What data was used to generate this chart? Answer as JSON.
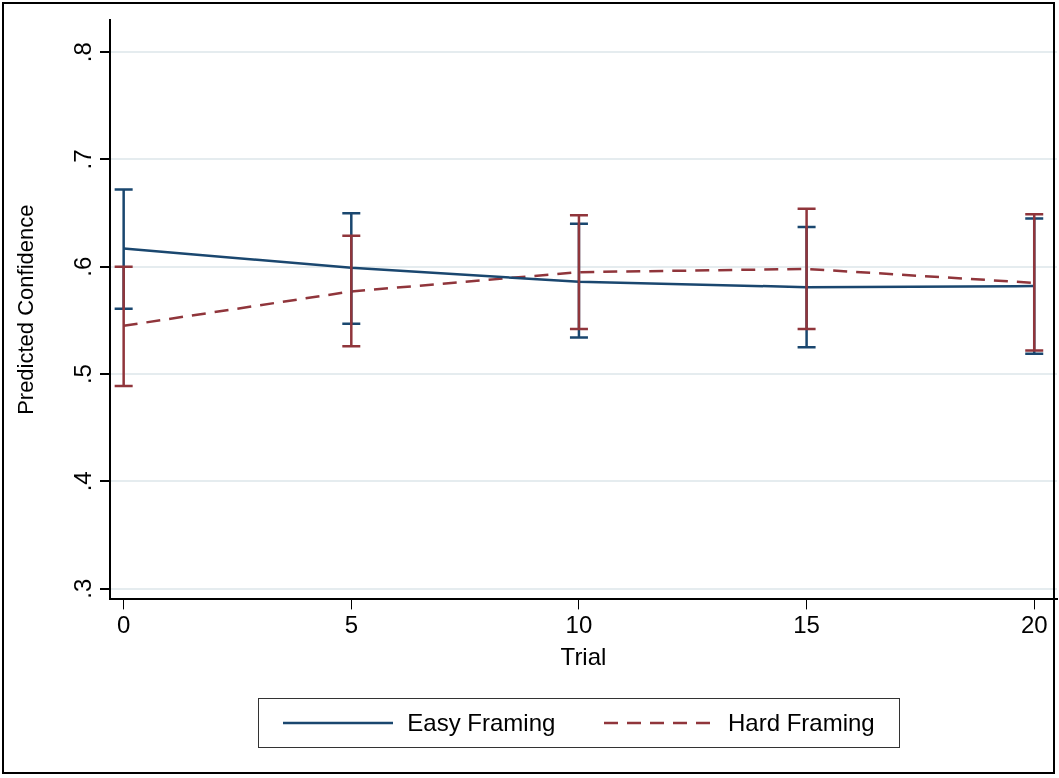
{
  "chart_data": {
    "type": "line",
    "xlabel": "Trial",
    "ylabel": "Predicted Confidence",
    "x": [
      0,
      5,
      10,
      15,
      20
    ],
    "series": [
      {
        "name": "Easy Framing",
        "color": "#1a476f",
        "line_style": "solid",
        "values": [
          0.617,
          0.599,
          0.586,
          0.581,
          0.582
        ],
        "errors": [
          [
            0.561,
            0.672
          ],
          [
            0.547,
            0.65
          ],
          [
            0.534,
            0.64
          ],
          [
            0.525,
            0.637
          ],
          [
            0.519,
            0.645
          ]
        ]
      },
      {
        "name": "Hard Framing",
        "color": "#90353b",
        "line_style": "dashed",
        "values": [
          0.545,
          0.577,
          0.595,
          0.598,
          0.585
        ],
        "errors": [
          [
            0.489,
            0.6
          ],
          [
            0.526,
            0.629
          ],
          [
            0.542,
            0.648
          ],
          [
            0.542,
            0.654
          ],
          [
            0.522,
            0.649
          ]
        ]
      }
    ],
    "xlim": [
      -0.3,
      20.5
    ],
    "xticks": [
      0,
      5,
      10,
      15,
      20
    ],
    "ylim": [
      0.29,
      0.83
    ],
    "yticks": [
      {
        "value": 0.3,
        "label": ".3"
      },
      {
        "value": 0.4,
        "label": ".4"
      },
      {
        "value": 0.5,
        "label": ".5"
      },
      {
        "value": 0.6,
        "label": ".6"
      },
      {
        "value": 0.7,
        "label": ".7"
      },
      {
        "value": 0.8,
        "label": ".8"
      }
    ],
    "grid": "y",
    "legend": "bottom",
    "marker": "none"
  }
}
